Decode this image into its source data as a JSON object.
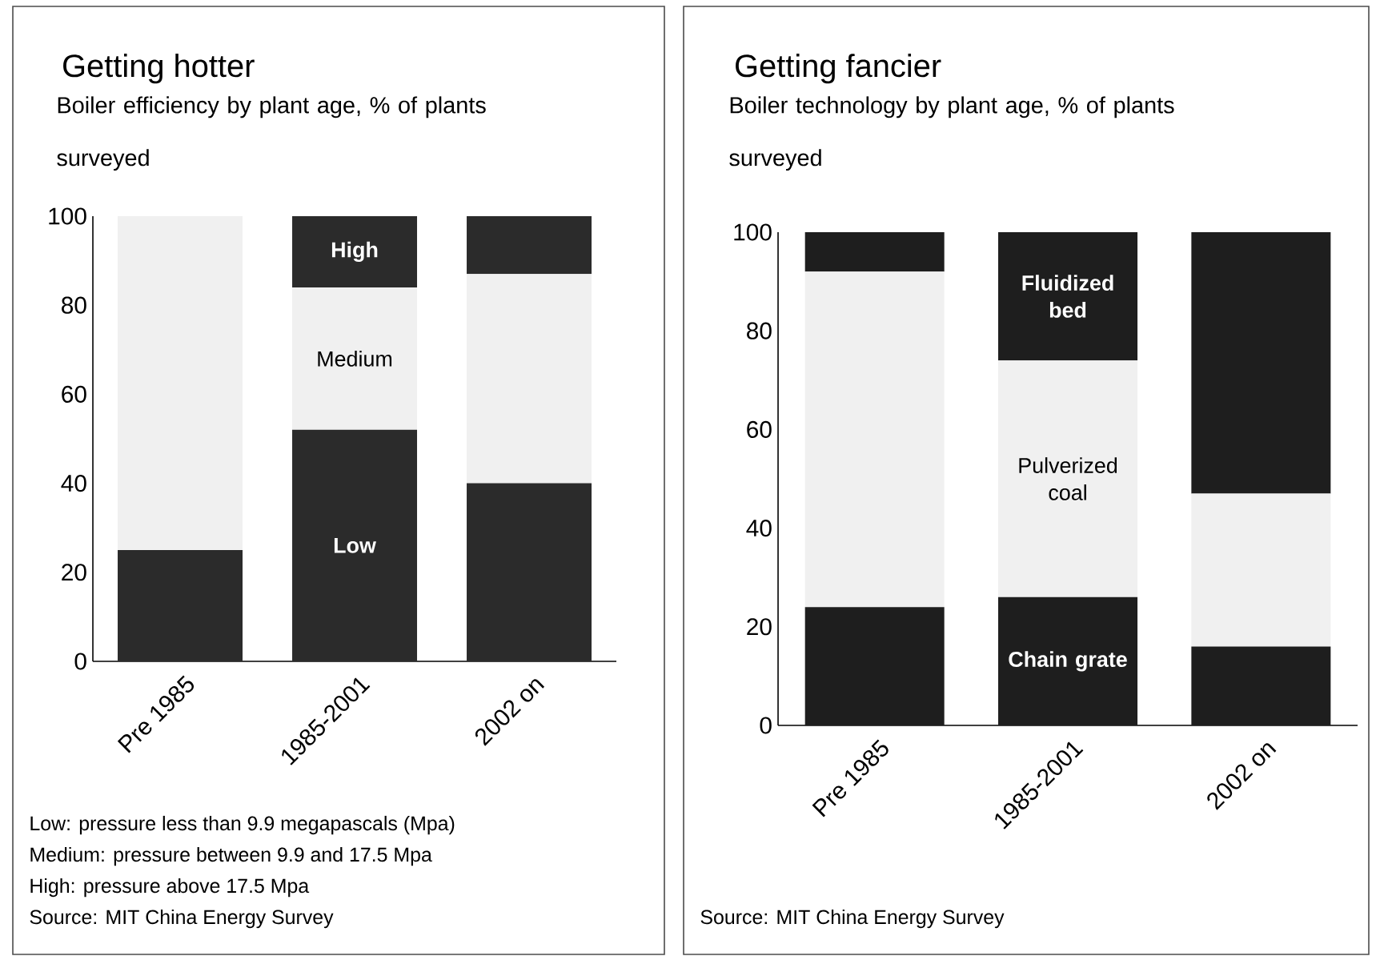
{
  "chart_data": [
    {
      "type": "bar",
      "stacked": true,
      "title": "Getting hotter",
      "subtitle": "Boiler efficiency by plant age, % of plants surveyed",
      "categories": [
        "Pre 1985",
        "1985-2001",
        "2002 on"
      ],
      "ylim": [
        0,
        100
      ],
      "yticks": [
        0,
        20,
        40,
        60,
        80,
        100
      ],
      "series": [
        {
          "name": "Low",
          "color": "#2b2b2b",
          "values": [
            25,
            52,
            40
          ]
        },
        {
          "name": "Medium",
          "color": "#f0f0f0",
          "values": [
            75,
            32,
            47
          ]
        },
        {
          "name": "High",
          "color": "#2b2b2b",
          "values": [
            0,
            16,
            13
          ]
        }
      ],
      "annotations": [
        "Low: pressure less than 9.9 megapascals (Mpa)",
        "Medium: pressure between 9.9 and 17.5 Mpa",
        "High: pressure above 17.5 Mpa",
        "Source: MIT China Energy Survey"
      ]
    },
    {
      "type": "bar",
      "stacked": true,
      "title": "Getting fancier",
      "subtitle": "Boiler technology by plant age, % of plants surveyed",
      "categories": [
        "Pre 1985",
        "1985-2001",
        "2002 on"
      ],
      "ylim": [
        0,
        100
      ],
      "yticks": [
        0,
        20,
        40,
        60,
        80,
        100
      ],
      "series": [
        {
          "name": "Chain grate",
          "color": "#1e1e1e",
          "values": [
            24,
            26,
            16
          ]
        },
        {
          "name": "Pulverized coal",
          "color": "#f0f0f0",
          "values": [
            68,
            48,
            31
          ]
        },
        {
          "name": "Fluidized bed",
          "color": "#1e1e1e",
          "values": [
            8,
            26,
            53
          ]
        }
      ],
      "annotations": [
        "Source: MIT China Energy Survey"
      ]
    }
  ]
}
